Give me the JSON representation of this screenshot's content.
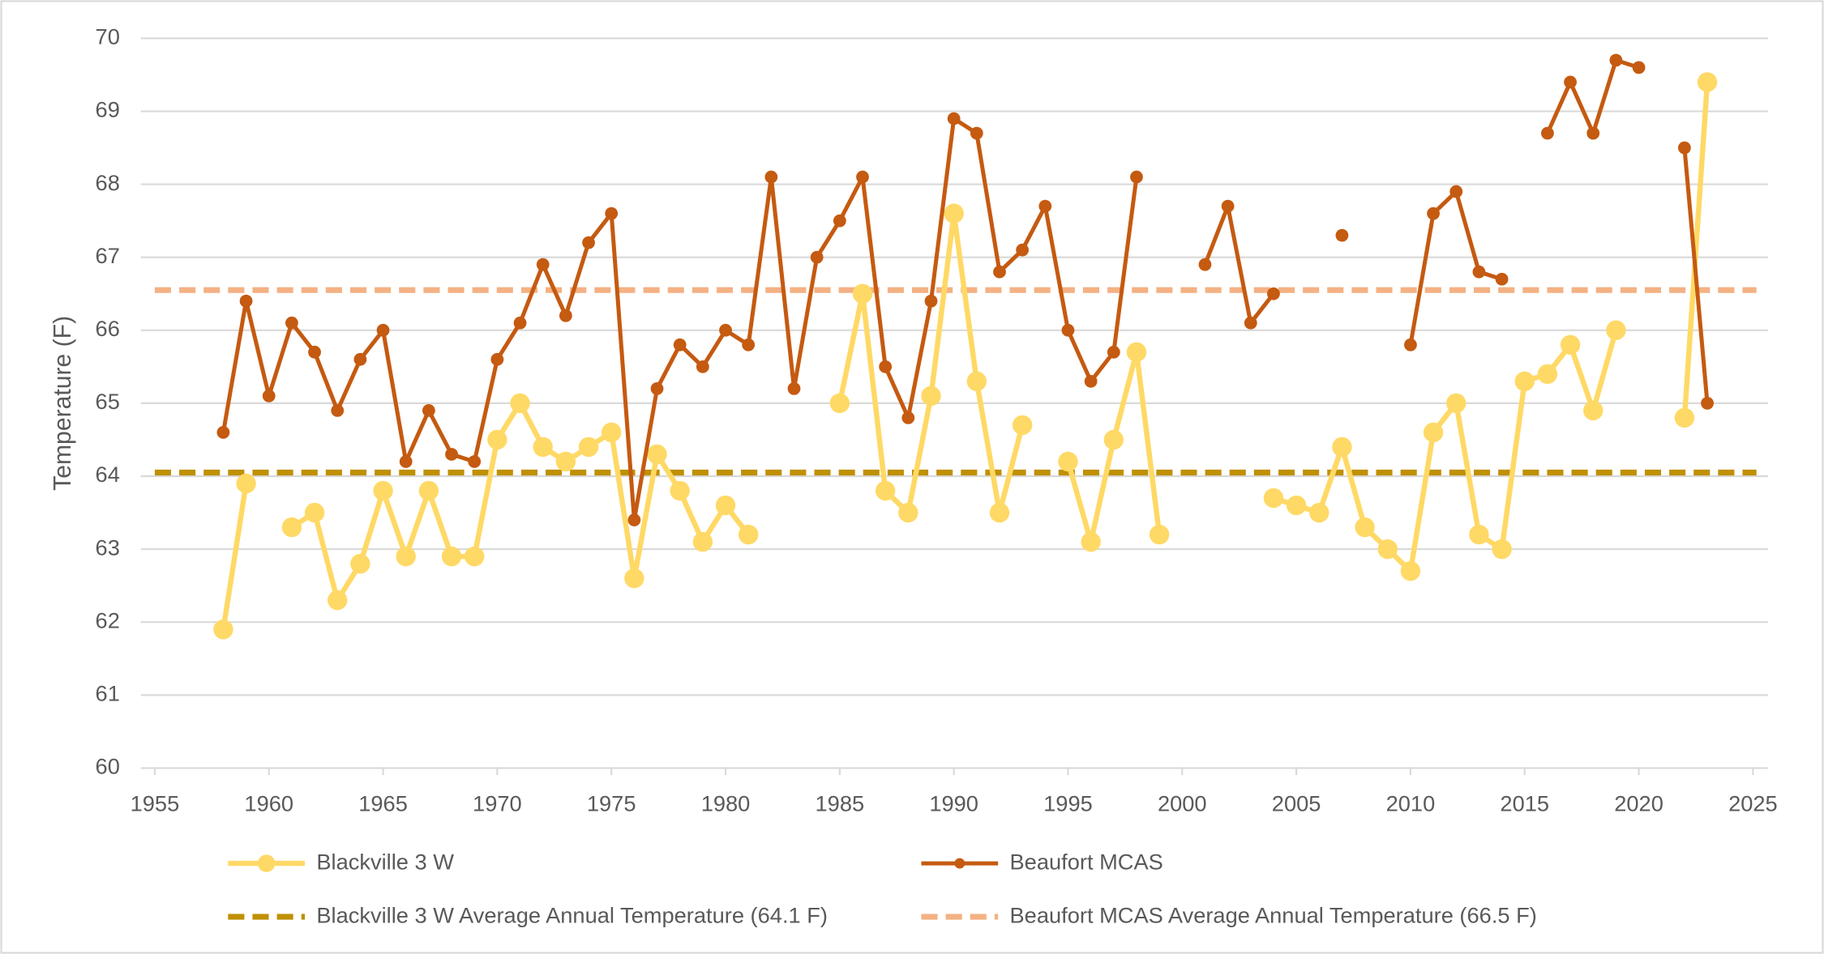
{
  "chart_data": {
    "type": "line",
    "y_label": "Temperature (F)",
    "x": [
      1958,
      1959,
      1960,
      1961,
      1962,
      1963,
      1964,
      1965,
      1966,
      1967,
      1968,
      1969,
      1970,
      1971,
      1972,
      1973,
      1974,
      1975,
      1976,
      1977,
      1978,
      1979,
      1980,
      1981,
      1982,
      1983,
      1984,
      1985,
      1986,
      1987,
      1988,
      1989,
      1990,
      1991,
      1992,
      1993,
      1994,
      1995,
      1996,
      1997,
      1998,
      1999,
      2000,
      2001,
      2002,
      2003,
      2004,
      2005,
      2006,
      2007,
      2008,
      2009,
      2010,
      2011,
      2012,
      2013,
      2014,
      2015,
      2016,
      2017,
      2018,
      2019,
      2020,
      2021,
      2022,
      2023
    ],
    "series": [
      {
        "name": "Blackville 3 W",
        "color": "#ffd966",
        "values": [
          61.9,
          63.9,
          null,
          63.3,
          63.5,
          62.3,
          62.8,
          63.8,
          62.9,
          63.8,
          62.9,
          62.9,
          64.5,
          65.0,
          64.4,
          64.2,
          64.4,
          64.6,
          62.6,
          64.3,
          63.8,
          63.1,
          63.6,
          63.2,
          null,
          null,
          null,
          65.0,
          66.5,
          63.8,
          63.5,
          65.1,
          67.6,
          65.3,
          63.5,
          64.7,
          null,
          64.2,
          63.1,
          64.5,
          65.7,
          63.2,
          null,
          null,
          null,
          null,
          63.7,
          63.6,
          63.5,
          64.4,
          63.3,
          63.0,
          62.7,
          64.6,
          65.0,
          63.2,
          63.0,
          65.3,
          65.4,
          65.8,
          64.9,
          66.0,
          null,
          null,
          64.8,
          69.4
        ]
      },
      {
        "name": "Beaufort MCAS",
        "color": "#c55a11",
        "values": [
          64.6,
          66.4,
          65.1,
          66.1,
          65.7,
          64.9,
          65.6,
          66.0,
          64.2,
          64.9,
          64.3,
          64.2,
          65.6,
          66.1,
          66.9,
          66.2,
          67.2,
          67.6,
          63.4,
          65.2,
          65.8,
          65.5,
          66.0,
          65.8,
          68.1,
          65.2,
          67.0,
          67.5,
          68.1,
          65.5,
          64.8,
          66.4,
          68.9,
          68.7,
          66.8,
          67.1,
          67.7,
          66.0,
          65.3,
          65.7,
          68.1,
          null,
          null,
          66.9,
          67.7,
          66.1,
          66.5,
          null,
          null,
          67.3,
          null,
          null,
          65.8,
          67.6,
          67.9,
          66.8,
          66.7,
          null,
          68.7,
          69.4,
          68.7,
          69.7,
          69.6,
          null,
          68.5,
          65.0
        ]
      }
    ],
    "reference_lines": [
      {
        "name": "Blackville 3 W Average Annual Temperature (64.1 F)",
        "color": "#bf9000",
        "value": 64.05
      },
      {
        "name": "Beaufort MCAS Average Annual Temperature (66.5 F)",
        "color": "#f4b183",
        "value": 66.55
      }
    ],
    "xlim": [
      1955,
      2025
    ],
    "xticks": [
      1955,
      1960,
      1965,
      1970,
      1975,
      1980,
      1985,
      1990,
      1995,
      2000,
      2005,
      2010,
      2015,
      2020,
      2025
    ],
    "ylim": [
      60,
      70
    ],
    "yticks": [
      60,
      61,
      62,
      63,
      64,
      65,
      66,
      67,
      68,
      69,
      70
    ],
    "grid": true,
    "legend": "bottom"
  }
}
